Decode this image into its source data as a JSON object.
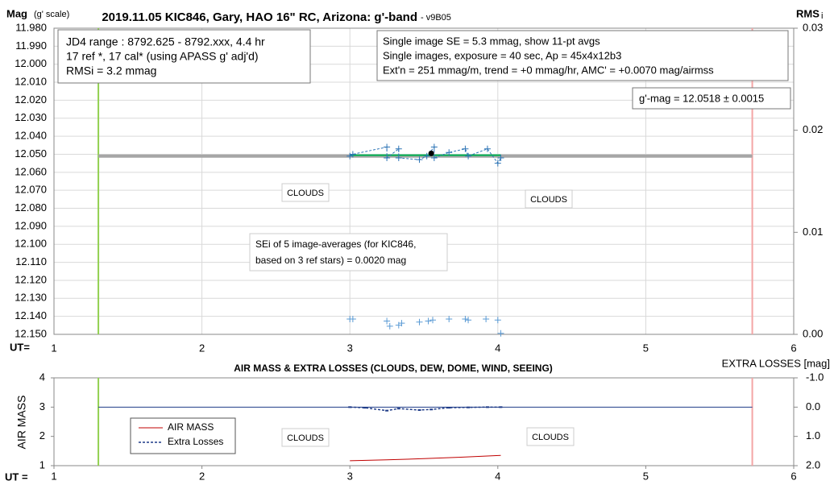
{
  "chart_data": [
    {
      "type": "line",
      "title": "2019.11.05 KIC846, Gary, HAO 16\" RC, Arizona: g'-band",
      "subtitle": "- v9B05",
      "ylabel": "Mag",
      "ylabel_note": "(g' scale)",
      "y2label": "RMS",
      "y2label_note": "i",
      "xlabel": "UT=",
      "xlim": [
        1,
        6
      ],
      "xticks": [
        1,
        2,
        3,
        4,
        5,
        6
      ],
      "ylim": [
        11.98,
        12.15
      ],
      "yinverted": true,
      "yticks": [
        {
          "value": 11.98,
          "label": "11.980"
        },
        {
          "value": 11.99,
          "label": "11.990"
        },
        {
          "value": 12.0,
          "label": "12.000"
        },
        {
          "value": 12.01,
          "label": "12.010"
        },
        {
          "value": 12.02,
          "label": "12.020"
        },
        {
          "value": 12.03,
          "label": "12.030"
        },
        {
          "value": 12.04,
          "label": "12.040"
        },
        {
          "value": 12.05,
          "label": "12.050"
        },
        {
          "value": 12.06,
          "label": "12.060"
        },
        {
          "value": 12.07,
          "label": "12.070"
        },
        {
          "value": 12.08,
          "label": "12.080"
        },
        {
          "value": 12.09,
          "label": "12.090"
        },
        {
          "value": 12.1,
          "label": "12.100"
        },
        {
          "value": 12.11,
          "label": "12.110"
        },
        {
          "value": 12.12,
          "label": "12.120"
        },
        {
          "value": 12.13,
          "label": "12.130"
        },
        {
          "value": 12.14,
          "label": "12.140"
        },
        {
          "value": 12.15,
          "label": "12.150"
        }
      ],
      "y2lim": [
        0,
        0.03
      ],
      "y2ticks": [
        {
          "value": 0,
          "label": "0.00"
        },
        {
          "value": 0.01,
          "label": "0.01"
        },
        {
          "value": 0.02,
          "label": "0.02"
        },
        {
          "value": 0.03,
          "label": "0.03"
        }
      ],
      "grid": true,
      "vlines": [
        {
          "x": 1.3,
          "color": "#92d050"
        },
        {
          "x": 5.72,
          "color": "#f4a6a6"
        }
      ],
      "series": [
        {
          "color": "#a6a6a6",
          "width": 4,
          "marker": "none",
          "x": [
            1.3,
            5.72
          ],
          "values": [
            12.051,
            12.051
          ]
        },
        {
          "color": "#00b050",
          "width": 2,
          "marker": "none",
          "x": [
            3.0,
            4.02
          ],
          "values": [
            12.0505,
            12.0505
          ]
        },
        {
          "color": "#2e75b6",
          "width": 1,
          "dash": true,
          "marker": "plus",
          "x": [
            3.0,
            3.02,
            3.25,
            3.25,
            3.33,
            3.33,
            3.47,
            3.52,
            3.57,
            3.57,
            3.67,
            3.78,
            3.8,
            3.93,
            4.0,
            4.02
          ],
          "values": [
            12.051,
            12.05,
            12.046,
            12.052,
            12.047,
            12.052,
            12.053,
            12.051,
            12.046,
            12.052,
            12.049,
            12.047,
            12.051,
            12.047,
            12.055,
            12.052
          ]
        },
        {
          "color": "#000000",
          "marker": "dot",
          "x": [
            3.55
          ],
          "values": [
            12.0495
          ]
        },
        {
          "color": "#5b9bd5",
          "marker": "plus",
          "axis": "y2",
          "x": [
            3.0,
            3.02,
            3.25,
            3.27,
            3.33,
            3.35,
            3.47,
            3.53,
            3.56,
            3.67,
            3.78,
            3.8,
            3.92,
            4.0,
            4.02
          ],
          "values": [
            0.0015,
            0.0015,
            0.0013,
            0.0008,
            0.0009,
            0.0011,
            0.0012,
            0.0013,
            0.0014,
            0.0015,
            0.0015,
            0.0014,
            0.0015,
            0.0014,
            0.0001
          ]
        }
      ],
      "annotations": [
        {
          "lines": [
            "JD4 range : 8792.625 - 8792.xxx,  4.4  hr",
            "17 ref *, 17 cal* (using APASS g' adj'd)",
            "RMSi = 3.2 mmag"
          ]
        },
        {
          "lines": [
            "Single image SE = 5.3 mmag, show  11-pt avgs",
            "Single images, exposure = 40 sec, Ap = 45x4x12b3",
            "Ext'n = 251 mmag/m, trend =  +0 mmag/hr, AMC' = +0.0070 mag/airmss"
          ]
        },
        {
          "lines": [
            "g'-mag = 12.0518 ± 0.0015"
          ]
        },
        {
          "lines": [
            "CLOUDS"
          ]
        },
        {
          "lines": [
            "CLOUDS"
          ]
        },
        {
          "lines": [
            "SEi of 5 image-averages (for KIC846,",
            "based on 3 ref stars) = 0.0020 mag"
          ]
        }
      ]
    },
    {
      "type": "line",
      "title": "AIR MASS & EXTRA LOSSES (CLOUDS, DEW, DOME, WIND, SEEING)",
      "ylabel": "AIR MASS",
      "y2label": "EXTRA LOSSES [mag]",
      "xlabel": "UT =",
      "xlim": [
        1,
        6
      ],
      "xticks": [
        1,
        2,
        3,
        4,
        5,
        6
      ],
      "ylim": [
        1,
        4
      ],
      "yticks": [
        1,
        2,
        3,
        4
      ],
      "y2lim": [
        -1.0,
        2.0
      ],
      "y2inverted": true,
      "y2ticks": [
        {
          "value": -1.0,
          "label": "-1.0"
        },
        {
          "value": 0.0,
          "label": "0.0"
        },
        {
          "value": 1.0,
          "label": "1.0"
        },
        {
          "value": 2.0,
          "label": "2.0"
        }
      ],
      "grid": false,
      "legend": "left",
      "vlines": [
        {
          "x": 1.3,
          "color": "#92d050"
        },
        {
          "x": 5.72,
          "color": "#f4a6a6"
        }
      ],
      "series": [
        {
          "color": "#1f3c88",
          "width": 1,
          "marker": "none",
          "axis": "y2",
          "x": [
            1.3,
            5.72
          ],
          "values": [
            0.0,
            0.0
          ]
        },
        {
          "name": "AIR MASS",
          "color": "#c00000",
          "width": 1,
          "marker": "none",
          "x": [
            3.0,
            3.25,
            3.5,
            3.75,
            4.02
          ],
          "values": [
            1.17,
            1.2,
            1.24,
            1.29,
            1.35
          ]
        },
        {
          "name": "Extra Losses",
          "color": "#1f3c88",
          "width": 1.5,
          "dash": true,
          "marker": "tick",
          "axis": "y2",
          "x": [
            3.0,
            3.1,
            3.25,
            3.33,
            3.47,
            3.55,
            3.67,
            3.8,
            3.93,
            4.02
          ],
          "values": [
            0.0,
            0.02,
            0.12,
            0.05,
            0.1,
            0.08,
            0.02,
            0.01,
            0.0,
            0.0
          ]
        }
      ],
      "annotations": [
        {
          "lines": [
            "CLOUDS"
          ]
        },
        {
          "lines": [
            "CLOUDS"
          ]
        }
      ]
    }
  ]
}
